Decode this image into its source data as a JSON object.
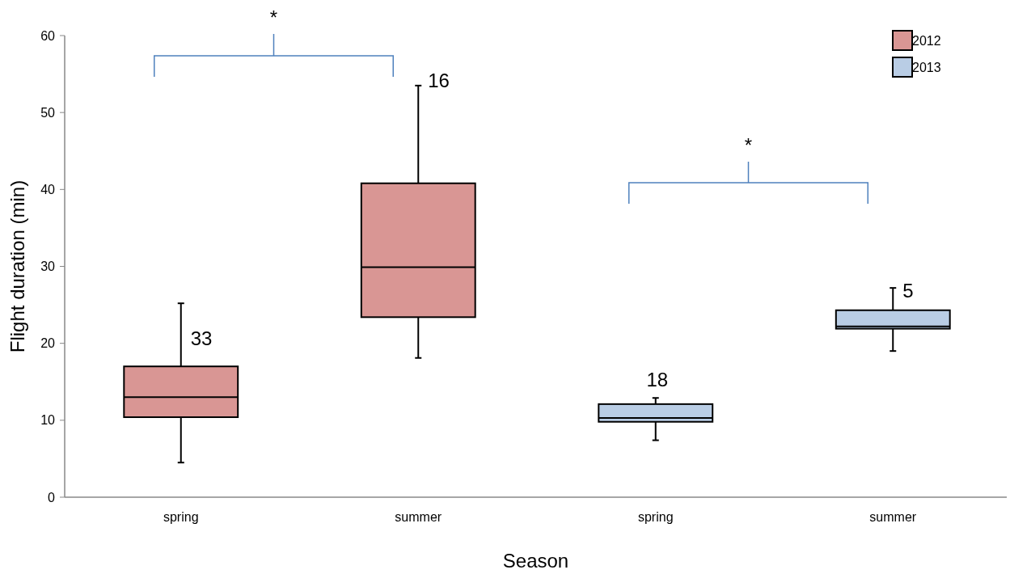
{
  "chart_data": {
    "type": "box",
    "xlabel": "Season",
    "ylabel": "Flight duration (min)",
    "categories": [
      "spring",
      "summer",
      "spring",
      "summer"
    ],
    "ylim": [
      0,
      60
    ],
    "yticks": [
      0,
      10,
      20,
      30,
      40,
      50,
      60
    ],
    "grid": false,
    "legend": "top right",
    "series": [
      {
        "name": "2012",
        "color": "#d99694",
        "boxes": [
          {
            "low": 4.5,
            "q1": 10.4,
            "median": 13.0,
            "q3": 17.0,
            "high": 25.2
          },
          {
            "low": 18.1,
            "q1": 23.4,
            "median": 29.9,
            "q3": 40.8,
            "high": 53.5
          },
          null,
          null
        ]
      },
      {
        "name": "2013",
        "color": "#b9cde5",
        "boxes": [
          null,
          null,
          {
            "low": 7.4,
            "q1": 9.8,
            "median": 10.3,
            "q3": 12.1,
            "high": 12.9
          },
          {
            "low": 19.0,
            "q1": 21.9,
            "median": 22.2,
            "q3": 24.3,
            "high": 27.2
          }
        ]
      }
    ],
    "annotations": [
      "*",
      "*",
      "33",
      "16",
      "18",
      "5"
    ]
  }
}
